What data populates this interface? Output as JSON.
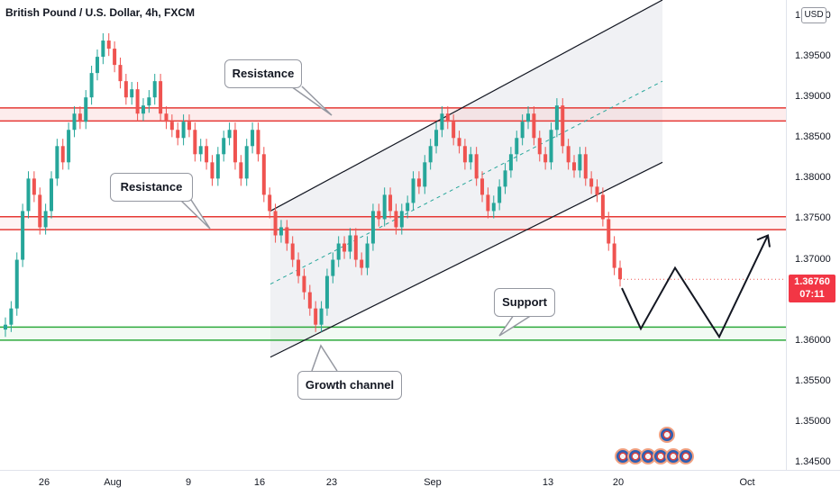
{
  "header": {
    "title": "British Pound / U.S. Dollar, 4h, FXCM",
    "currency": "USD"
  },
  "price_tag": {
    "price": "1.36760",
    "countdown": "07:11"
  },
  "annotations": {
    "resistance_upper": "Resistance",
    "resistance_lower": "Resistance",
    "support": "Support",
    "channel": "Growth channel"
  },
  "chart_data": {
    "type": "candlestick",
    "instrument": "British Pound / U.S. Dollar",
    "timeframe": "4h",
    "source": "FXCM",
    "y_axis": {
      "range": [
        1.343,
        1.4
      ],
      "tick_labels": [
        "1.40000",
        "1.39500",
        "1.39000",
        "1.38500",
        "1.38000",
        "1.37500",
        "1.37000",
        "1.36500",
        "1.36000",
        "1.35500",
        "1.35000",
        "1.34500"
      ]
    },
    "x_axis": {
      "tick_labels": [
        "26",
        "Aug",
        "9",
        "16",
        "23",
        "Sep",
        "13",
        "20",
        "Oct"
      ]
    },
    "last_price": 1.3676,
    "resistance_zone_1": [
      1.3871,
      1.3887
    ],
    "resistance_zone_2": [
      1.3737,
      1.3753
    ],
    "support_zone": [
      1.3601,
      1.3617
    ],
    "growth_channel": {
      "lower_line": [
        1.358,
        1.382
      ],
      "upper_line": [
        1.376,
        1.402
      ],
      "midline": [
        1.367,
        1.392
      ]
    },
    "forecast_path": [
      1.3665,
      1.3615,
      1.369,
      1.3605,
      1.373
    ],
    "candles_close": [
      1.362,
      1.364,
      1.37,
      1.376,
      1.38,
      1.378,
      1.374,
      1.376,
      1.38,
      1.384,
      1.382,
      1.386,
      1.388,
      1.387,
      1.39,
      1.393,
      1.395,
      1.397,
      1.396,
      1.394,
      1.392,
      1.39,
      1.391,
      1.388,
      1.389,
      1.39,
      1.392,
      1.388,
      1.387,
      1.386,
      1.385,
      1.387,
      1.386,
      1.383,
      1.384,
      1.382,
      1.38,
      1.383,
      1.385,
      1.386,
      1.382,
      1.38,
      1.384,
      1.386,
      1.383,
      1.378,
      1.376,
      1.373,
      1.374,
      1.372,
      1.37,
      1.368,
      1.366,
      1.364,
      1.362,
      1.364,
      1.368,
      1.37,
      1.372,
      1.371,
      1.373,
      1.37,
      1.369,
      1.372,
      1.376,
      1.375,
      1.378,
      1.376,
      1.374,
      1.376,
      1.377,
      1.38,
      1.379,
      1.382,
      1.384,
      1.386,
      1.388,
      1.387,
      1.385,
      1.384,
      1.382,
      1.383,
      1.38,
      1.378,
      1.376,
      1.377,
      1.379,
      1.381,
      1.383,
      1.385,
      1.387,
      1.388,
      1.385,
      1.383,
      1.382,
      1.386,
      1.389,
      1.384,
      1.382,
      1.381,
      1.383,
      1.38,
      1.379,
      1.378,
      1.375,
      1.372,
      1.369,
      1.3676
    ]
  }
}
